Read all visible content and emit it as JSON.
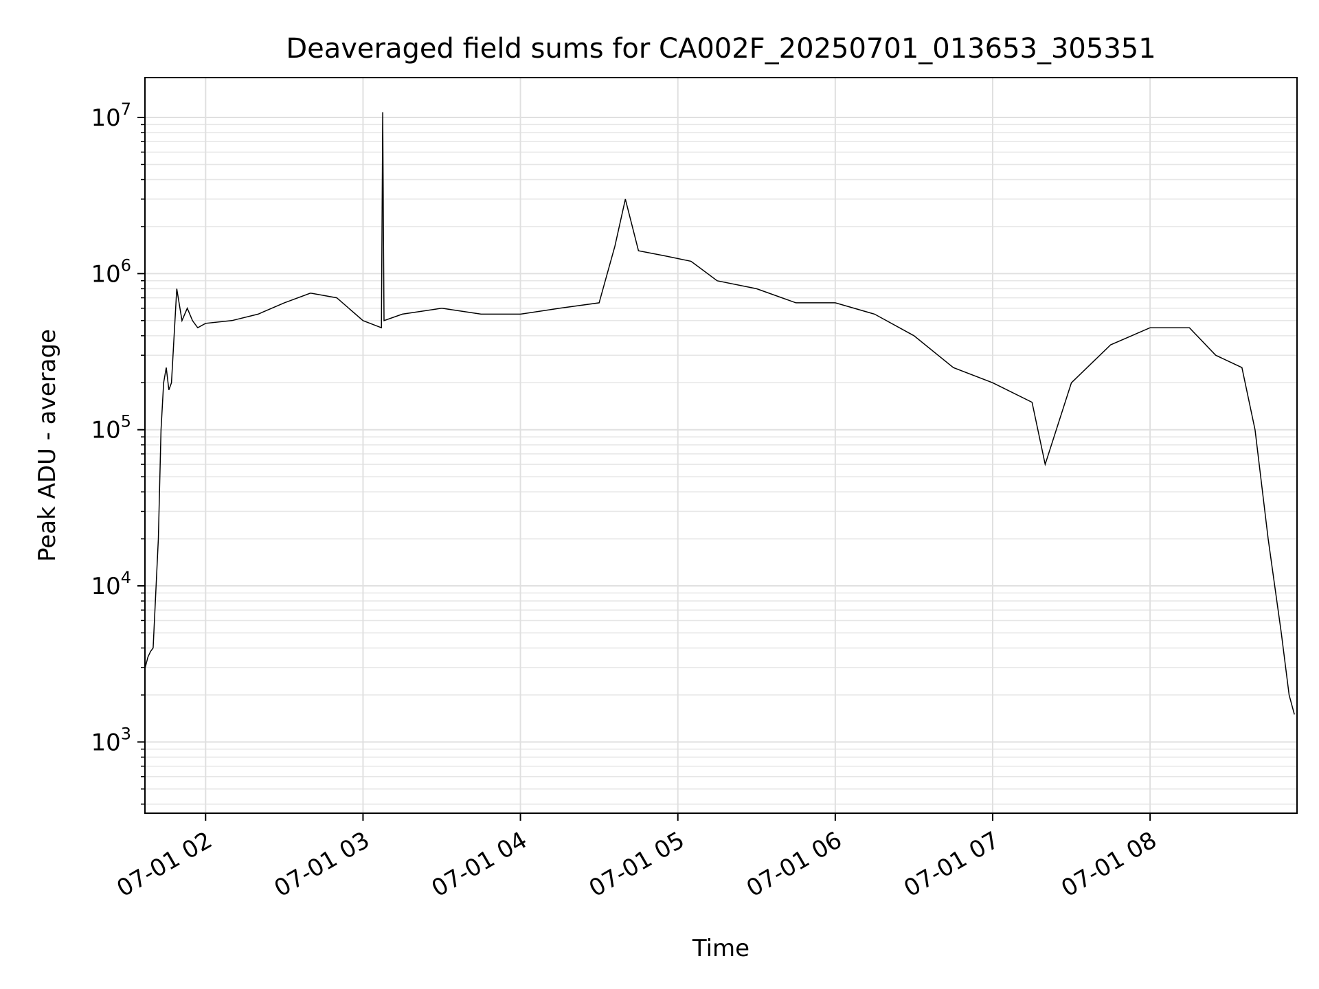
{
  "chart_data": {
    "type": "line",
    "title": "Deaveraged field sums for CA002F_20250701_013653_305351",
    "xlabel": "Time",
    "ylabel": "Peak ADU - average",
    "yscale": "log",
    "xlim": [
      "2025-07-01 01:36:53",
      "2025-07-01 08:56:00"
    ],
    "ylim": [
      350,
      18000000
    ],
    "grid": true,
    "grid_minor_y": true,
    "line_color": "#000000",
    "x_ticks": [
      {
        "time": "2025-07-01 02:00",
        "label": "07-01 02"
      },
      {
        "time": "2025-07-01 03:00",
        "label": "07-01 03"
      },
      {
        "time": "2025-07-01 04:00",
        "label": "07-01 04"
      },
      {
        "time": "2025-07-01 05:00",
        "label": "07-01 05"
      },
      {
        "time": "2025-07-01 06:00",
        "label": "07-01 06"
      },
      {
        "time": "2025-07-01 07:00",
        "label": "07-01 07"
      },
      {
        "time": "2025-07-01 08:00",
        "label": "07-01 08"
      }
    ],
    "y_ticks": [
      {
        "value": 1000,
        "base": "10",
        "exp": "3"
      },
      {
        "value": 10000,
        "base": "10",
        "exp": "4"
      },
      {
        "value": 100000,
        "base": "10",
        "exp": "5"
      },
      {
        "value": 1000000,
        "base": "10",
        "exp": "6"
      },
      {
        "value": 10000000,
        "base": "10",
        "exp": "7"
      }
    ],
    "series": [
      {
        "x": [
          "2025-07-01 01:37",
          "2025-07-01 01:38",
          "2025-07-01 01:39",
          "2025-07-01 01:40",
          "2025-07-01 01:42",
          "2025-07-01 01:43",
          "2025-07-01 01:44",
          "2025-07-01 01:45",
          "2025-07-01 01:46",
          "2025-07-01 01:47",
          "2025-07-01 01:49",
          "2025-07-01 01:51",
          "2025-07-01 01:53",
          "2025-07-01 01:55",
          "2025-07-01 01:57",
          "2025-07-01 02:00",
          "2025-07-01 02:10",
          "2025-07-01 02:20",
          "2025-07-01 02:30",
          "2025-07-01 02:40",
          "2025-07-01 02:50",
          "2025-07-01 03:00",
          "2025-07-01 03:07",
          "2025-07-01 03:07:30",
          "2025-07-01 03:08",
          "2025-07-01 03:15",
          "2025-07-01 03:30",
          "2025-07-01 03:45",
          "2025-07-01 04:00",
          "2025-07-01 04:15",
          "2025-07-01 04:30",
          "2025-07-01 04:36",
          "2025-07-01 04:40",
          "2025-07-01 04:45",
          "2025-07-01 04:55",
          "2025-07-01 05:05",
          "2025-07-01 05:15",
          "2025-07-01 05:30",
          "2025-07-01 05:45",
          "2025-07-01 06:00",
          "2025-07-01 06:15",
          "2025-07-01 06:30",
          "2025-07-01 06:45",
          "2025-07-01 07:00",
          "2025-07-01 07:15",
          "2025-07-01 07:20",
          "2025-07-01 07:30",
          "2025-07-01 07:45",
          "2025-07-01 08:00",
          "2025-07-01 08:15",
          "2025-07-01 08:25",
          "2025-07-01 08:35",
          "2025-07-01 08:40",
          "2025-07-01 08:45",
          "2025-07-01 08:50",
          "2025-07-01 08:53",
          "2025-07-01 08:55"
        ],
        "y": [
          3000,
          3500,
          3800,
          4000,
          20000,
          100000,
          200000,
          250000,
          180000,
          200000,
          800000,
          500000,
          600000,
          500000,
          450000,
          480000,
          500000,
          550000,
          650000,
          750000,
          700000,
          500000,
          450000,
          10800000,
          500000,
          550000,
          600000,
          550000,
          550000,
          600000,
          650000,
          1500000,
          3000000,
          1400000,
          1300000,
          1200000,
          900000,
          800000,
          650000,
          650000,
          550000,
          400000,
          250000,
          200000,
          150000,
          60000,
          200000,
          350000,
          450000,
          450000,
          300000,
          250000,
          100000,
          20000,
          5000,
          2000,
          1500
        ]
      }
    ]
  }
}
